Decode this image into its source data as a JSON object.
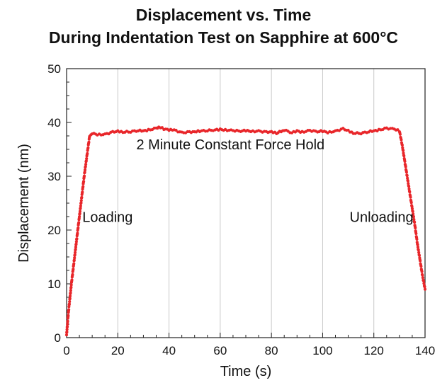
{
  "chart_data": {
    "type": "scatter",
    "title": "Displacement vs. Time",
    "subtitle": "During Indentation Test on Sapphire at 600°C",
    "xlabel": "Time (s)",
    "ylabel": "Displacement (nm)",
    "xlim": [
      0,
      140
    ],
    "ylim": [
      0,
      50
    ],
    "xticks": [
      "0",
      "20",
      "40",
      "60",
      "80",
      "100",
      "120",
      "140"
    ],
    "yticks": [
      "0",
      "10",
      "20",
      "30",
      "40",
      "50"
    ],
    "grid": "vertical",
    "annotations": [
      {
        "text": "2 Minute Constant Force Hold",
        "x": 64,
        "y": 35
      },
      {
        "text": "Loading",
        "x": 16,
        "y": 21.5
      },
      {
        "text": "Unloading",
        "x": 123,
        "y": 21.5
      }
    ],
    "series": [
      {
        "color": "#e8262a",
        "points": [
          [
            0.0,
            0.5
          ],
          [
            0.5,
            3.5
          ],
          [
            1.0,
            6.0
          ],
          [
            2.0,
            10.5
          ],
          [
            3.0,
            14.5
          ],
          [
            4.0,
            18.5
          ],
          [
            5.0,
            22.5
          ],
          [
            6.0,
            26.5
          ],
          [
            7.0,
            30.5
          ],
          [
            8.0,
            34.0
          ],
          [
            9.0,
            37.5
          ],
          [
            10.0,
            38.0
          ],
          [
            12.0,
            37.7
          ],
          [
            15.0,
            37.8
          ],
          [
            18.0,
            38.2
          ],
          [
            20.0,
            38.4
          ],
          [
            22.0,
            38.2
          ],
          [
            25.0,
            38.3
          ],
          [
            28.0,
            38.5
          ],
          [
            30.0,
            38.4
          ],
          [
            32.0,
            38.6
          ],
          [
            35.0,
            38.9
          ],
          [
            36.0,
            39.2
          ],
          [
            38.0,
            38.8
          ],
          [
            40.0,
            38.6
          ],
          [
            42.0,
            38.6
          ],
          [
            45.0,
            38.1
          ],
          [
            48.0,
            38.2
          ],
          [
            50.0,
            38.3
          ],
          [
            52.0,
            38.4
          ],
          [
            55.0,
            38.5
          ],
          [
            58.0,
            38.6
          ],
          [
            60.0,
            38.7
          ],
          [
            62.0,
            38.6
          ],
          [
            65.0,
            38.5
          ],
          [
            68.0,
            38.4
          ],
          [
            70.0,
            38.5
          ],
          [
            72.0,
            38.3
          ],
          [
            75.0,
            38.4
          ],
          [
            78.0,
            38.2
          ],
          [
            80.0,
            38.3
          ],
          [
            82.0,
            38.0
          ],
          [
            85.0,
            38.6
          ],
          [
            88.0,
            38.1
          ],
          [
            90.0,
            38.4
          ],
          [
            92.0,
            38.2
          ],
          [
            95.0,
            38.5
          ],
          [
            98.0,
            38.3
          ],
          [
            100.0,
            38.4
          ],
          [
            102.0,
            38.1
          ],
          [
            105.0,
            38.4
          ],
          [
            108.0,
            38.8
          ],
          [
            110.0,
            38.5
          ],
          [
            112.0,
            38.0
          ],
          [
            115.0,
            38.0
          ],
          [
            118.0,
            38.3
          ],
          [
            120.0,
            38.4
          ],
          [
            122.0,
            38.6
          ],
          [
            125.0,
            38.9
          ],
          [
            128.0,
            38.8
          ],
          [
            130.0,
            38.4
          ],
          [
            131.0,
            36.0
          ],
          [
            132.0,
            33.0
          ],
          [
            133.0,
            30.0
          ],
          [
            134.0,
            27.0
          ],
          [
            135.0,
            24.0
          ],
          [
            136.0,
            21.0
          ],
          [
            137.0,
            17.5
          ],
          [
            138.0,
            14.5
          ],
          [
            139.0,
            11.5
          ],
          [
            140.0,
            9.0
          ]
        ]
      }
    ]
  }
}
